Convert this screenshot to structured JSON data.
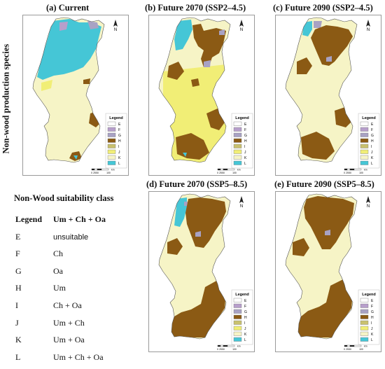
{
  "row_label": "Non-wood production species",
  "panels": [
    {
      "title": "(a) Current",
      "scenario": "current"
    },
    {
      "title": "(b) Future 2070 (SSP2–4.5)",
      "scenario": "b"
    },
    {
      "title": "(c) Future 2090 (SSP2–4.5)",
      "scenario": "c"
    },
    {
      "title": "(d) Future 2070 (SSP5–8.5)",
      "scenario": "d"
    },
    {
      "title": "(e) Future 2090 (SSP5–8.5)",
      "scenario": "e"
    }
  ],
  "map_legend": {
    "title": "Legend",
    "items": [
      {
        "code": "E",
        "color": "#ffffff"
      },
      {
        "code": "F",
        "color": "#b79fcb"
      },
      {
        "code": "G",
        "color": "#a8a2c4"
      },
      {
        "code": "H",
        "color": "#8b5a14"
      },
      {
        "code": "I",
        "color": "#c9c16f"
      },
      {
        "code": "J",
        "color": "#f1ee76"
      },
      {
        "code": "K",
        "color": "#f6f4c6"
      },
      {
        "code": "L",
        "color": "#45c6d6"
      }
    ]
  },
  "scale_bar": {
    "labels": [
      "0",
      "25",
      "50",
      "100"
    ],
    "unit": "km"
  },
  "north_arrow": "N",
  "suitability_table": {
    "title": "Non-Wood suitability class",
    "header": {
      "legend": "Legend",
      "species": "Um + Ch + Oa"
    },
    "rows": [
      {
        "code": "E",
        "species": "unsuitable"
      },
      {
        "code": "F",
        "species": "Ch"
      },
      {
        "code": "G",
        "species": "Oa"
      },
      {
        "code": "H",
        "species": "Um"
      },
      {
        "code": "I",
        "species": "Ch + Oa"
      },
      {
        "code": "J",
        "species": "Um + Ch"
      },
      {
        "code": "K",
        "species": "Um + Oa"
      },
      {
        "code": "L",
        "species": "Um + Ch + Oa"
      }
    ]
  }
}
